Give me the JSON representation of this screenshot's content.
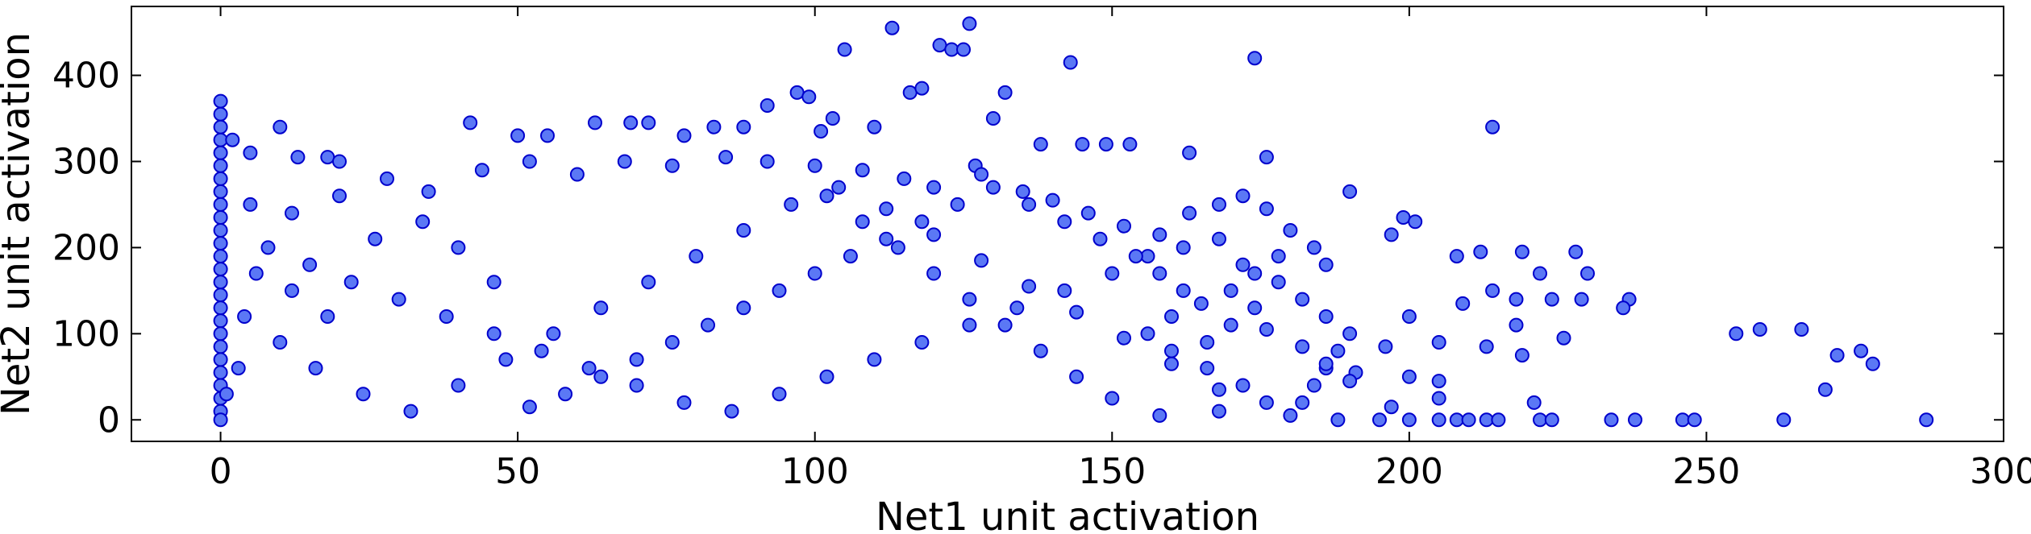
{
  "chart_data": {
    "type": "scatter",
    "xlabel": "Net1 unit activation",
    "ylabel": "Net2 unit activation",
    "xlim": [
      -15,
      300
    ],
    "ylim": [
      -25,
      480
    ],
    "x_ticks": [
      0,
      50,
      100,
      150,
      200,
      250,
      300
    ],
    "y_ticks": [
      0,
      100,
      200,
      300,
      400
    ],
    "x_tick_labels": [
      "0",
      "50",
      "100",
      "150",
      "200",
      "250",
      "300"
    ],
    "y_tick_labels": [
      "0",
      "100",
      "200",
      "300",
      "400"
    ],
    "grid": false,
    "legend": "none",
    "marker_color": "#5b78f5",
    "marker_edge_color": "#0000cc",
    "series": [
      {
        "points": [
          [
            0,
            370
          ],
          [
            0,
            355
          ],
          [
            0,
            340
          ],
          [
            0,
            325
          ],
          [
            0,
            310
          ],
          [
            0,
            295
          ],
          [
            0,
            280
          ],
          [
            0,
            265
          ],
          [
            0,
            250
          ],
          [
            0,
            235
          ],
          [
            0,
            220
          ],
          [
            0,
            205
          ],
          [
            0,
            190
          ],
          [
            0,
            175
          ],
          [
            0,
            160
          ],
          [
            0,
            145
          ],
          [
            0,
            130
          ],
          [
            0,
            115
          ],
          [
            0,
            100
          ],
          [
            0,
            85
          ],
          [
            0,
            70
          ],
          [
            0,
            55
          ],
          [
            0,
            40
          ],
          [
            0,
            25
          ],
          [
            0,
            10
          ],
          [
            0,
            0
          ],
          [
            2,
            325
          ],
          [
            5,
            310
          ],
          [
            10,
            340
          ],
          [
            13,
            305
          ],
          [
            18,
            305
          ],
          [
            20,
            300
          ],
          [
            42,
            345
          ],
          [
            50,
            330
          ],
          [
            55,
            330
          ],
          [
            63,
            345
          ],
          [
            69,
            345
          ],
          [
            72,
            345
          ],
          [
            78,
            330
          ],
          [
            83,
            340
          ],
          [
            88,
            340
          ],
          [
            92,
            365
          ],
          [
            97,
            380
          ],
          [
            99,
            375
          ],
          [
            101,
            335
          ],
          [
            103,
            350
          ],
          [
            105,
            430
          ],
          [
            110,
            340
          ],
          [
            113,
            455
          ],
          [
            116,
            380
          ],
          [
            118,
            385
          ],
          [
            121,
            435
          ],
          [
            123,
            430
          ],
          [
            125,
            430
          ],
          [
            126,
            460
          ],
          [
            127,
            295
          ],
          [
            130,
            350
          ],
          [
            132,
            380
          ],
          [
            138,
            320
          ],
          [
            143,
            415
          ],
          [
            145,
            320
          ],
          [
            149,
            320
          ],
          [
            153,
            320
          ],
          [
            163,
            310
          ],
          [
            174,
            420
          ],
          [
            176,
            305
          ],
          [
            214,
            340
          ],
          [
            190,
            265
          ],
          [
            199,
            235
          ],
          [
            201,
            230
          ],
          [
            197,
            215
          ],
          [
            208,
            190
          ],
          [
            212,
            195
          ],
          [
            219,
            195
          ],
          [
            228,
            195
          ],
          [
            222,
            170
          ],
          [
            230,
            170
          ],
          [
            214,
            150
          ],
          [
            209,
            135
          ],
          [
            218,
            140
          ],
          [
            224,
            140
          ],
          [
            229,
            140
          ],
          [
            237,
            140
          ],
          [
            236,
            130
          ],
          [
            200,
            120
          ],
          [
            218,
            110
          ],
          [
            226,
            95
          ],
          [
            205,
            90
          ],
          [
            213,
            85
          ],
          [
            196,
            85
          ],
          [
            219,
            75
          ],
          [
            191,
            55
          ],
          [
            200,
            50
          ],
          [
            205,
            45
          ],
          [
            190,
            45
          ],
          [
            205,
            25
          ],
          [
            197,
            15
          ],
          [
            221,
            20
          ],
          [
            255,
            100
          ],
          [
            259,
            105
          ],
          [
            266,
            105
          ],
          [
            272,
            75
          ],
          [
            276,
            80
          ],
          [
            278,
            65
          ],
          [
            270,
            35
          ],
          [
            188,
            0
          ],
          [
            195,
            0
          ],
          [
            200,
            0
          ],
          [
            205,
            0
          ],
          [
            208,
            0
          ],
          [
            210,
            0
          ],
          [
            213,
            0
          ],
          [
            215,
            0
          ],
          [
            222,
            0
          ],
          [
            224,
            0
          ],
          [
            234,
            0
          ],
          [
            238,
            0
          ],
          [
            246,
            0
          ],
          [
            248,
            0
          ],
          [
            263,
            0
          ],
          [
            287,
            0
          ],
          [
            5,
            250
          ],
          [
            12,
            240
          ],
          [
            20,
            260
          ],
          [
            28,
            280
          ],
          [
            35,
            265
          ],
          [
            44,
            290
          ],
          [
            52,
            300
          ],
          [
            60,
            285
          ],
          [
            68,
            300
          ],
          [
            76,
            295
          ],
          [
            85,
            305
          ],
          [
            92,
            300
          ],
          [
            100,
            295
          ],
          [
            108,
            290
          ],
          [
            115,
            280
          ],
          [
            120,
            270
          ],
          [
            128,
            285
          ],
          [
            135,
            265
          ],
          [
            140,
            255
          ],
          [
            146,
            240
          ],
          [
            152,
            225
          ],
          [
            158,
            215
          ],
          [
            163,
            240
          ],
          [
            168,
            250
          ],
          [
            172,
            260
          ],
          [
            176,
            245
          ],
          [
            180,
            220
          ],
          [
            184,
            200
          ],
          [
            186,
            180
          ],
          [
            178,
            190
          ],
          [
            174,
            170
          ],
          [
            170,
            150
          ],
          [
            165,
            135
          ],
          [
            160,
            120
          ],
          [
            156,
            100
          ],
          [
            160,
            80
          ],
          [
            166,
            60
          ],
          [
            172,
            40
          ],
          [
            176,
            20
          ],
          [
            168,
            10
          ],
          [
            158,
            5
          ],
          [
            150,
            25
          ],
          [
            144,
            50
          ],
          [
            138,
            80
          ],
          [
            132,
            110
          ],
          [
            126,
            140
          ],
          [
            120,
            170
          ],
          [
            114,
            200
          ],
          [
            108,
            230
          ],
          [
            102,
            260
          ],
          [
            8,
            200
          ],
          [
            15,
            180
          ],
          [
            22,
            160
          ],
          [
            30,
            140
          ],
          [
            38,
            120
          ],
          [
            46,
            100
          ],
          [
            54,
            80
          ],
          [
            62,
            60
          ],
          [
            70,
            40
          ],
          [
            78,
            20
          ],
          [
            86,
            10
          ],
          [
            94,
            30
          ],
          [
            102,
            50
          ],
          [
            110,
            70
          ],
          [
            118,
            90
          ],
          [
            126,
            110
          ],
          [
            134,
            130
          ],
          [
            142,
            150
          ],
          [
            150,
            170
          ],
          [
            156,
            190
          ],
          [
            162,
            200
          ],
          [
            168,
            210
          ],
          [
            172,
            180
          ],
          [
            178,
            160
          ],
          [
            182,
            140
          ],
          [
            186,
            120
          ],
          [
            190,
            100
          ],
          [
            188,
            80
          ],
          [
            186,
            60
          ],
          [
            184,
            40
          ],
          [
            182,
            20
          ],
          [
            180,
            5
          ],
          [
            4,
            120
          ],
          [
            10,
            90
          ],
          [
            16,
            60
          ],
          [
            24,
            30
          ],
          [
            32,
            10
          ],
          [
            40,
            40
          ],
          [
            48,
            70
          ],
          [
            56,
            100
          ],
          [
            64,
            130
          ],
          [
            72,
            160
          ],
          [
            80,
            190
          ],
          [
            88,
            220
          ],
          [
            96,
            250
          ],
          [
            104,
            270
          ],
          [
            112,
            245
          ],
          [
            120,
            215
          ],
          [
            128,
            185
          ],
          [
            136,
            155
          ],
          [
            144,
            125
          ],
          [
            152,
            95
          ],
          [
            160,
            65
          ],
          [
            168,
            35
          ],
          [
            176,
            105
          ],
          [
            182,
            85
          ],
          [
            186,
            65
          ],
          [
            174,
            130
          ],
          [
            170,
            110
          ],
          [
            166,
            90
          ],
          [
            162,
            150
          ],
          [
            158,
            170
          ],
          [
            154,
            190
          ],
          [
            148,
            210
          ],
          [
            142,
            230
          ],
          [
            136,
            250
          ],
          [
            130,
            270
          ],
          [
            124,
            250
          ],
          [
            118,
            230
          ],
          [
            112,
            210
          ],
          [
            106,
            190
          ],
          [
            100,
            170
          ],
          [
            94,
            150
          ],
          [
            88,
            130
          ],
          [
            82,
            110
          ],
          [
            76,
            90
          ],
          [
            70,
            70
          ],
          [
            64,
            50
          ],
          [
            58,
            30
          ],
          [
            52,
            15
          ],
          [
            46,
            160
          ],
          [
            40,
            200
          ],
          [
            34,
            230
          ],
          [
            26,
            210
          ],
          [
            18,
            120
          ],
          [
            12,
            150
          ],
          [
            6,
            170
          ],
          [
            3,
            60
          ],
          [
            1,
            30
          ]
        ]
      }
    ]
  }
}
